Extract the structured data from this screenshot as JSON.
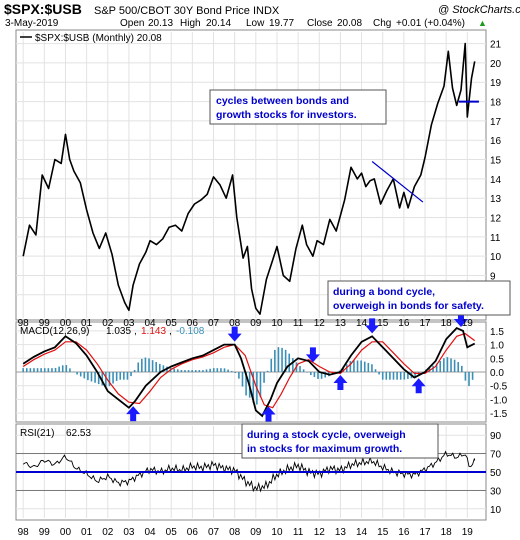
{
  "header": {
    "symbol": "$SPX:$USB",
    "description": "S&P 500/CBOT 30Y Bond Price INDX",
    "watermark": "@ StockCharts.com",
    "date": "3-May-2019",
    "open_label": "Open",
    "open": "20.13",
    "high_label": "High",
    "high": "20.14",
    "low_label": "Low",
    "low": "19.77",
    "close_label": "Close",
    "close": "20.08",
    "chg_label": "Chg",
    "chg": "+0.01 (+0.04%)",
    "chg_marker": "▲"
  },
  "colors": {
    "price": "#000000",
    "macd": "#000000",
    "signal": "#e01010",
    "histogram": "#3a8fb7",
    "arrow": "#1a1aff",
    "annotation_text": "#0000cc",
    "blue_line": "#0000cc"
  },
  "annotations": [
    {
      "lines": [
        "cycles between bonds and",
        "growth stocks for investors."
      ]
    },
    {
      "lines": [
        "during a bond cycle,",
        "overweigh in bonds for safety."
      ]
    },
    {
      "lines": [
        "during a stock cycle, overweigh",
        "in stocks for maximum growth."
      ]
    }
  ],
  "chart_data": [
    {
      "type": "line",
      "panel": "price",
      "legend": "$SPX:$USB (Monthly) 20.08",
      "x_tick_labels": [
        "98",
        "99",
        "00",
        "01",
        "02",
        "03",
        "04",
        "05",
        "06",
        "07",
        "08",
        "09",
        "10",
        "11",
        "12",
        "13",
        "14",
        "15",
        "16",
        "17",
        "18",
        "19"
      ],
      "y_ticks": [
        8,
        9,
        10,
        11,
        12,
        13,
        14,
        15,
        16,
        17,
        18,
        19,
        20,
        21
      ],
      "ylim": [
        6.8,
        21.6
      ],
      "xlim": [
        1997.85,
        2019.6
      ],
      "series": [
        {
          "x": [
            1998.0,
            1998.3,
            1998.6,
            1998.9,
            1999.2,
            1999.5,
            1999.8,
            2000.0,
            2000.2,
            2000.4,
            2000.7,
            2001.0,
            2001.3,
            2001.6,
            2001.9,
            2002.2,
            2002.5,
            2002.8,
            2003.0,
            2003.2,
            2003.5,
            2003.8,
            2004.0,
            2004.3,
            2004.6,
            2004.9,
            2005.2,
            2005.5,
            2005.8,
            2006.1,
            2006.4,
            2006.7,
            2007.0,
            2007.3,
            2007.6,
            2007.9,
            2008.1,
            2008.4,
            2008.6,
            2008.8,
            2009.0,
            2009.2,
            2009.5,
            2009.8,
            2010.0,
            2010.3,
            2010.6,
            2010.9,
            2011.2,
            2011.4,
            2011.7,
            2011.9,
            2012.2,
            2012.5,
            2012.8,
            2013.0,
            2013.2,
            2013.5,
            2013.8,
            2014.0,
            2014.2,
            2014.4,
            2014.6,
            2014.9,
            2015.2,
            2015.5,
            2015.8,
            2016.0,
            2016.2,
            2016.5,
            2016.8,
            2017.0,
            2017.3,
            2017.6,
            2017.9,
            2018.1,
            2018.3,
            2018.5,
            2018.7,
            2018.9,
            2019.0,
            2019.2,
            2019.35
          ],
          "y": [
            10.0,
            11.6,
            11.1,
            14.2,
            13.5,
            15.0,
            14.8,
            16.3,
            15.0,
            14.4,
            13.8,
            12.4,
            11.2,
            10.4,
            11.2,
            10.1,
            8.5,
            7.6,
            7.2,
            8.5,
            9.6,
            10.2,
            10.8,
            10.6,
            10.9,
            11.5,
            11.6,
            11.3,
            12.2,
            12.7,
            12.9,
            13.2,
            14.1,
            13.7,
            13.0,
            14.2,
            12.0,
            9.9,
            10.5,
            8.3,
            7.3,
            7.0,
            8.8,
            9.8,
            10.5,
            9.0,
            8.7,
            10.4,
            11.6,
            10.6,
            10.0,
            10.8,
            10.6,
            11.9,
            11.3,
            12.1,
            12.9,
            14.6,
            14.0,
            14.3,
            13.6,
            13.9,
            14.0,
            12.7,
            13.4,
            14.0,
            12.5,
            13.3,
            12.5,
            13.6,
            14.2,
            15.1,
            16.8,
            17.9,
            18.8,
            20.6,
            18.7,
            17.8,
            18.6,
            21.0,
            17.2,
            19.2,
            20.08
          ]
        }
      ],
      "trendlines": [
        {
          "x": [
            2014.5,
            2016.9
          ],
          "y": [
            14.9,
            12.8
          ]
        },
        {
          "x": [
            2018.6,
            2019.55
          ],
          "y": [
            18.0,
            18.0
          ]
        }
      ]
    },
    {
      "type": "line",
      "panel": "macd",
      "legend_name": "MACD(12,26,9)",
      "macd_value": "1.035",
      "signal_value": "1.143",
      "hist_value": "-0.108",
      "y_tick_labels": [
        "1.5",
        "1.0",
        "0.5",
        "0.0",
        "-0.5",
        "-1.0",
        "-1.5"
      ],
      "ylim": [
        -1.75,
        1.75
      ],
      "series": [
        {
          "x": [
            1998.0,
            1998.5,
            1999.0,
            1999.5,
            2000.0,
            2000.5,
            2001.0,
            2001.5,
            2002.0,
            2002.5,
            2003.0,
            2003.3,
            2003.8,
            2004.5,
            2005.0,
            2005.5,
            2006.0,
            2006.5,
            2007.0,
            2007.5,
            2008.0,
            2008.3,
            2008.7,
            2009.0,
            2009.3,
            2009.7,
            2010.0,
            2010.5,
            2011.0,
            2011.5,
            2012.0,
            2012.5,
            2013.0,
            2013.5,
            2014.0,
            2014.5,
            2015.0,
            2015.5,
            2016.0,
            2016.5,
            2017.0,
            2017.5,
            2018.0,
            2018.5,
            2018.8,
            2019.0,
            2019.35
          ],
          "y": [
            0.3,
            0.55,
            0.75,
            0.9,
            1.3,
            1.05,
            0.6,
            0.0,
            -0.7,
            -1.0,
            -1.3,
            -1.05,
            -0.5,
            0.0,
            0.2,
            0.35,
            0.5,
            0.6,
            0.8,
            1.0,
            1.0,
            0.5,
            -0.5,
            -1.4,
            -1.6,
            -1.0,
            -0.4,
            0.2,
            0.5,
            0.4,
            0.0,
            -0.1,
            0.0,
            0.6,
            1.1,
            1.3,
            0.9,
            0.5,
            0.1,
            -0.2,
            0.0,
            0.4,
            1.2,
            1.6,
            1.5,
            0.9,
            1.035
          ]
        },
        {
          "x": [
            1998.0,
            1998.5,
            1999.0,
            1999.5,
            2000.0,
            2000.5,
            2001.0,
            2001.5,
            2002.0,
            2002.5,
            2003.0,
            2003.5,
            2004.0,
            2004.5,
            2005.0,
            2005.5,
            2006.0,
            2006.5,
            2007.0,
            2007.5,
            2008.0,
            2008.5,
            2009.0,
            2009.4,
            2009.8,
            2010.2,
            2010.6,
            2011.0,
            2011.5,
            2012.0,
            2012.5,
            2013.0,
            2013.5,
            2014.0,
            2014.5,
            2015.0,
            2015.5,
            2016.0,
            2016.5,
            2017.0,
            2017.5,
            2018.0,
            2018.5,
            2018.9,
            2019.35
          ],
          "y": [
            0.2,
            0.45,
            0.65,
            0.8,
            1.1,
            1.1,
            0.8,
            0.3,
            -0.3,
            -0.8,
            -1.1,
            -1.15,
            -0.7,
            -0.2,
            0.1,
            0.3,
            0.45,
            0.55,
            0.7,
            0.9,
            1.0,
            0.6,
            -0.5,
            -1.2,
            -1.3,
            -0.8,
            -0.2,
            0.3,
            0.45,
            0.2,
            0.0,
            -0.05,
            0.3,
            0.8,
            1.1,
            1.1,
            0.7,
            0.3,
            -0.05,
            -0.05,
            0.2,
            0.8,
            1.3,
            1.4,
            1.143
          ]
        }
      ],
      "arrows": [
        {
          "x": 2003.2,
          "dir": "up"
        },
        {
          "x": 2008.0,
          "dir": "down"
        },
        {
          "x": 2009.6,
          "dir": "up"
        },
        {
          "x": 2011.7,
          "dir": "down"
        },
        {
          "x": 2013.0,
          "dir": "up"
        },
        {
          "x": 2014.5,
          "dir": "down"
        },
        {
          "x": 2016.7,
          "dir": "up"
        },
        {
          "x": 2018.7,
          "dir": "down"
        }
      ]
    },
    {
      "type": "line",
      "panel": "rsi",
      "legend_name": "RSI(21)",
      "rsi_value": "62.53",
      "y_tick_labels": [
        "90",
        "70",
        "50",
        "30",
        "10"
      ],
      "ylim": [
        0,
        100
      ],
      "reference_level": 50,
      "series": [
        {
          "x": [
            1998.0,
            1998.5,
            1999.0,
            1999.5,
            2000.0,
            2000.5,
            2001.0,
            2001.5,
            2002.0,
            2002.5,
            2003.0,
            2003.5,
            2004.0,
            2004.5,
            2005.0,
            2005.5,
            2006.0,
            2006.5,
            2007.0,
            2007.5,
            2008.0,
            2008.5,
            2009.0,
            2009.5,
            2010.0,
            2010.5,
            2011.0,
            2011.5,
            2012.0,
            2012.5,
            2013.0,
            2013.5,
            2014.0,
            2014.5,
            2015.0,
            2015.5,
            2016.0,
            2016.5,
            2017.0,
            2017.5,
            2018.0,
            2018.5,
            2018.9,
            2019.1,
            2019.35
          ],
          "y": [
            60,
            55,
            63,
            58,
            67,
            54,
            48,
            40,
            45,
            38,
            40,
            47,
            53,
            50,
            54,
            52,
            56,
            55,
            58,
            54,
            52,
            40,
            32,
            35,
            47,
            53,
            57,
            50,
            48,
            54,
            52,
            58,
            60,
            62,
            55,
            50,
            48,
            47,
            53,
            60,
            70,
            66,
            70,
            55,
            62.53
          ]
        }
      ]
    }
  ]
}
